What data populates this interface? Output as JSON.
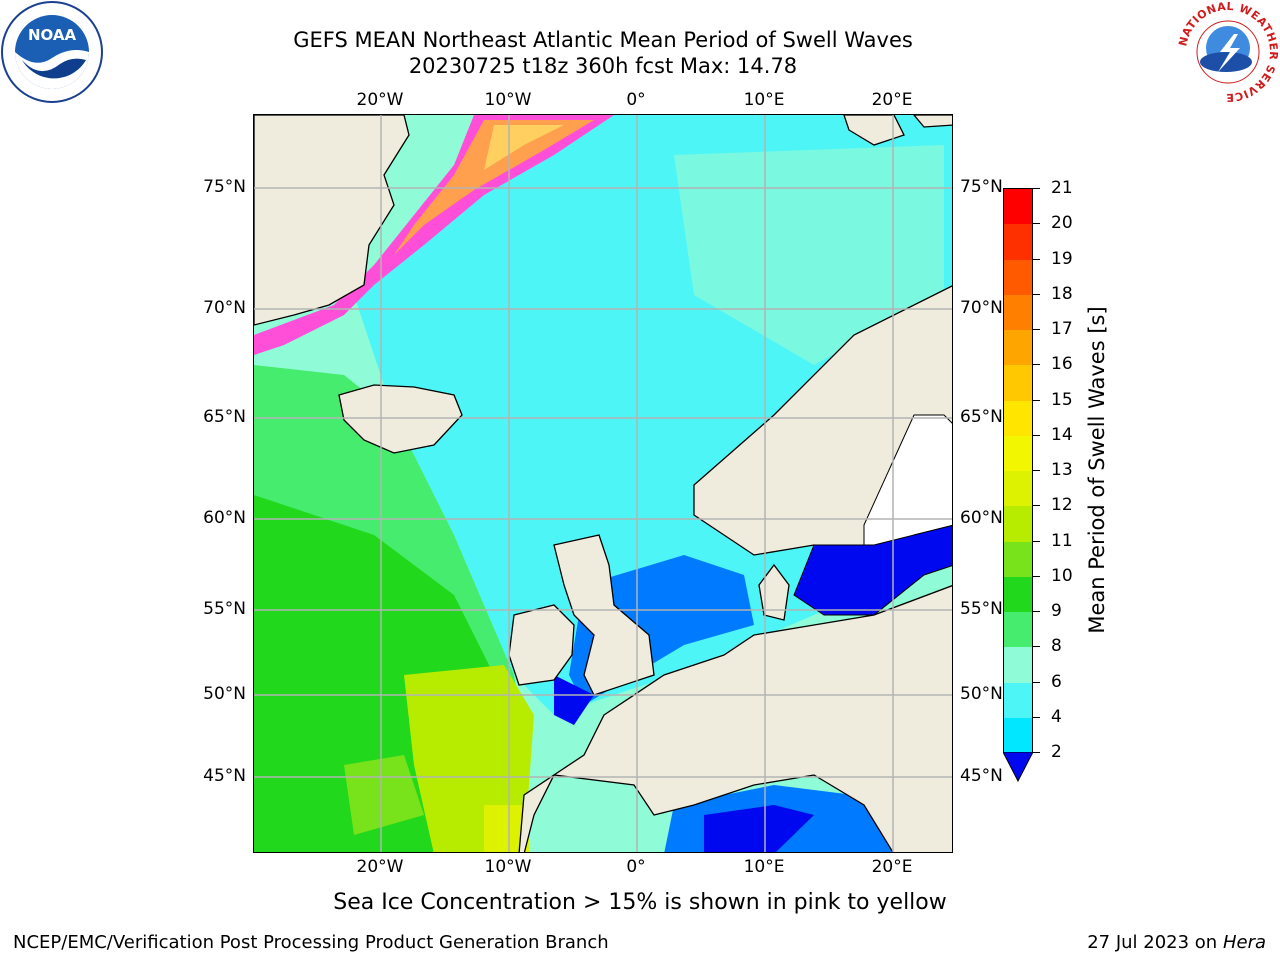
{
  "title": {
    "line1": "GEFS MEAN Northeast Atlantic Mean Period of Swell Waves",
    "line2": "20230725 t18z 360h fcst   Max: 14.78"
  },
  "map": {
    "projection": "lat-lon",
    "lon_range_deg": [
      -30,
      25
    ],
    "lat_range_deg": [
      41,
      78
    ],
    "top_lon_labels": [
      "20°W",
      "10°W",
      "0°",
      "10°E",
      "20°E"
    ],
    "bottom_lon_labels": [
      "20°W",
      "10°W",
      "0°",
      "10°E",
      "20°E"
    ],
    "left_lat_labels": [
      "75°N",
      "70°N",
      "65°N",
      "60°N",
      "55°N",
      "50°N",
      "45°N"
    ],
    "right_lat_labels": [
      "75°N",
      "70°N",
      "65°N",
      "60°N",
      "55°N",
      "50°N",
      "45°N"
    ],
    "grid": true,
    "land_color": "#efecdd",
    "grid_color": "#b3b3b3"
  },
  "colorbar": {
    "label": "Mean Period of Swell Waves [s]",
    "ticks": [
      "21",
      "20",
      "19",
      "18",
      "17",
      "16",
      "15",
      "14",
      "13",
      "12",
      "11",
      "10",
      "9",
      "8",
      "6",
      "4",
      "2"
    ],
    "levels_top_to_bottom": [
      "#ff0000",
      "#ff3000",
      "#ff5a00",
      "#ff8000",
      "#ffa500",
      "#ffc800",
      "#ffe600",
      "#f2f600",
      "#ddf200",
      "#b7ec00",
      "#78e21a",
      "#22d81c",
      "#46ec6e",
      "#8ffbd7",
      "#4ef5f6",
      "#00e7ff",
      "#007bff"
    ],
    "extend": "min",
    "extend_color": "#0008f0"
  },
  "notes": {
    "ice": "Sea Ice Concentration > 15% is shown in pink to yellow"
  },
  "footer": {
    "left": "NCEP/EMC/Verification Post Processing Product Generation Branch",
    "right_prefix": "27 Jul 2023 on ",
    "right_machine": "Hera"
  },
  "logos": {
    "noaa": {
      "icon": "noaa-logo-icon",
      "text": "NOAA"
    },
    "nws": {
      "icon": "nws-logo-icon",
      "text": "NATIONAL WEATHER SERVICE"
    }
  }
}
